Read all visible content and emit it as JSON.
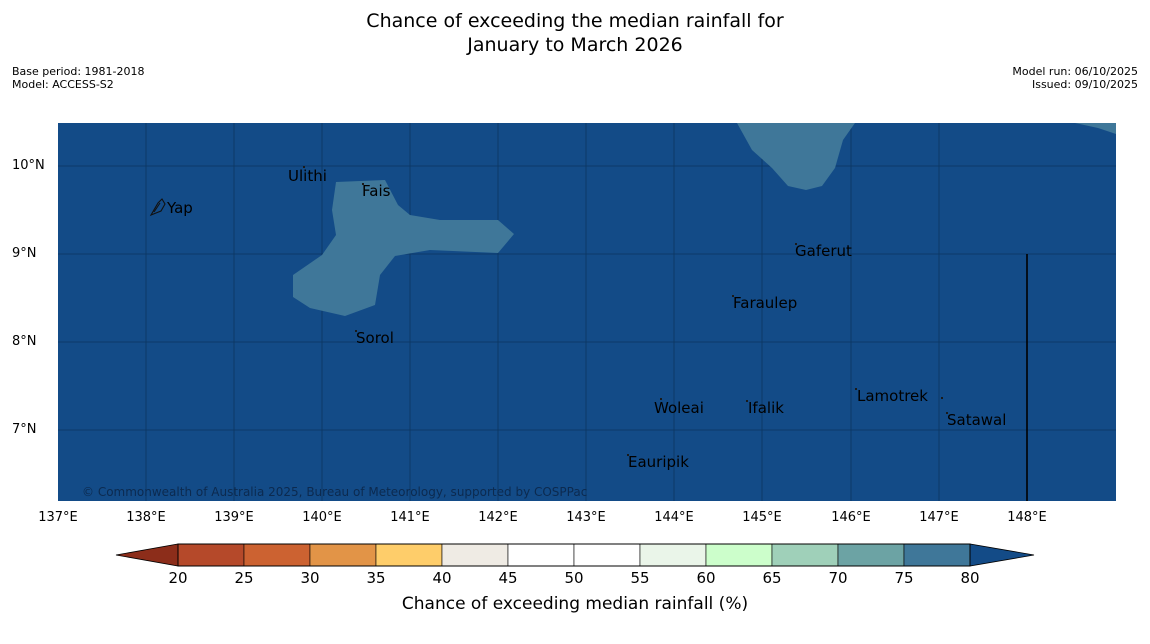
{
  "title": {
    "line1": "Chance of exceeding the median rainfall for",
    "line2": "January to March 2026"
  },
  "meta": {
    "base_period": "Base period: 1981-2018",
    "model": "Model: ACCESS-S2",
    "model_run": "Model run: 06/10/2025",
    "issued": "Issued: 09/10/2025"
  },
  "map": {
    "ocean_color": "#134b87",
    "zone_color": "#3f7799",
    "latitude_labels": [
      "10°N",
      "9°N",
      "8°N",
      "7°N"
    ],
    "longitude_labels": [
      "137°E",
      "138°E",
      "139°E",
      "140°E",
      "141°E",
      "142°E",
      "143°E",
      "144°E",
      "145°E",
      "146°E",
      "147°E",
      "148°E"
    ],
    "places": [
      "Yap",
      "Ulithi",
      "Fais",
      "Gaferut",
      "Faraulep",
      "Sorol",
      "Lamotrek",
      "Woleai",
      "Ifalik",
      "Satawal",
      "Eauripik"
    ],
    "copyright": "© Commonwealth of Australia 2025, Bureau of Meteorology, supported by COSPPac"
  },
  "colorbar": {
    "title": "Chance of exceeding median rainfall (%)",
    "ticks": [
      "20",
      "25",
      "30",
      "35",
      "40",
      "45",
      "50",
      "55",
      "60",
      "65",
      "70",
      "75",
      "80"
    ],
    "colors": [
      "#8c2d1a",
      "#b5492a",
      "#cc6231",
      "#e29447",
      "#fecd6a",
      "#efebe4",
      "#ffffff",
      "#ffffff",
      "#eaf5e9",
      "#ccfecb",
      "#9fd0b9",
      "#6ca3a4",
      "#3f7799",
      "#134b87"
    ]
  }
}
